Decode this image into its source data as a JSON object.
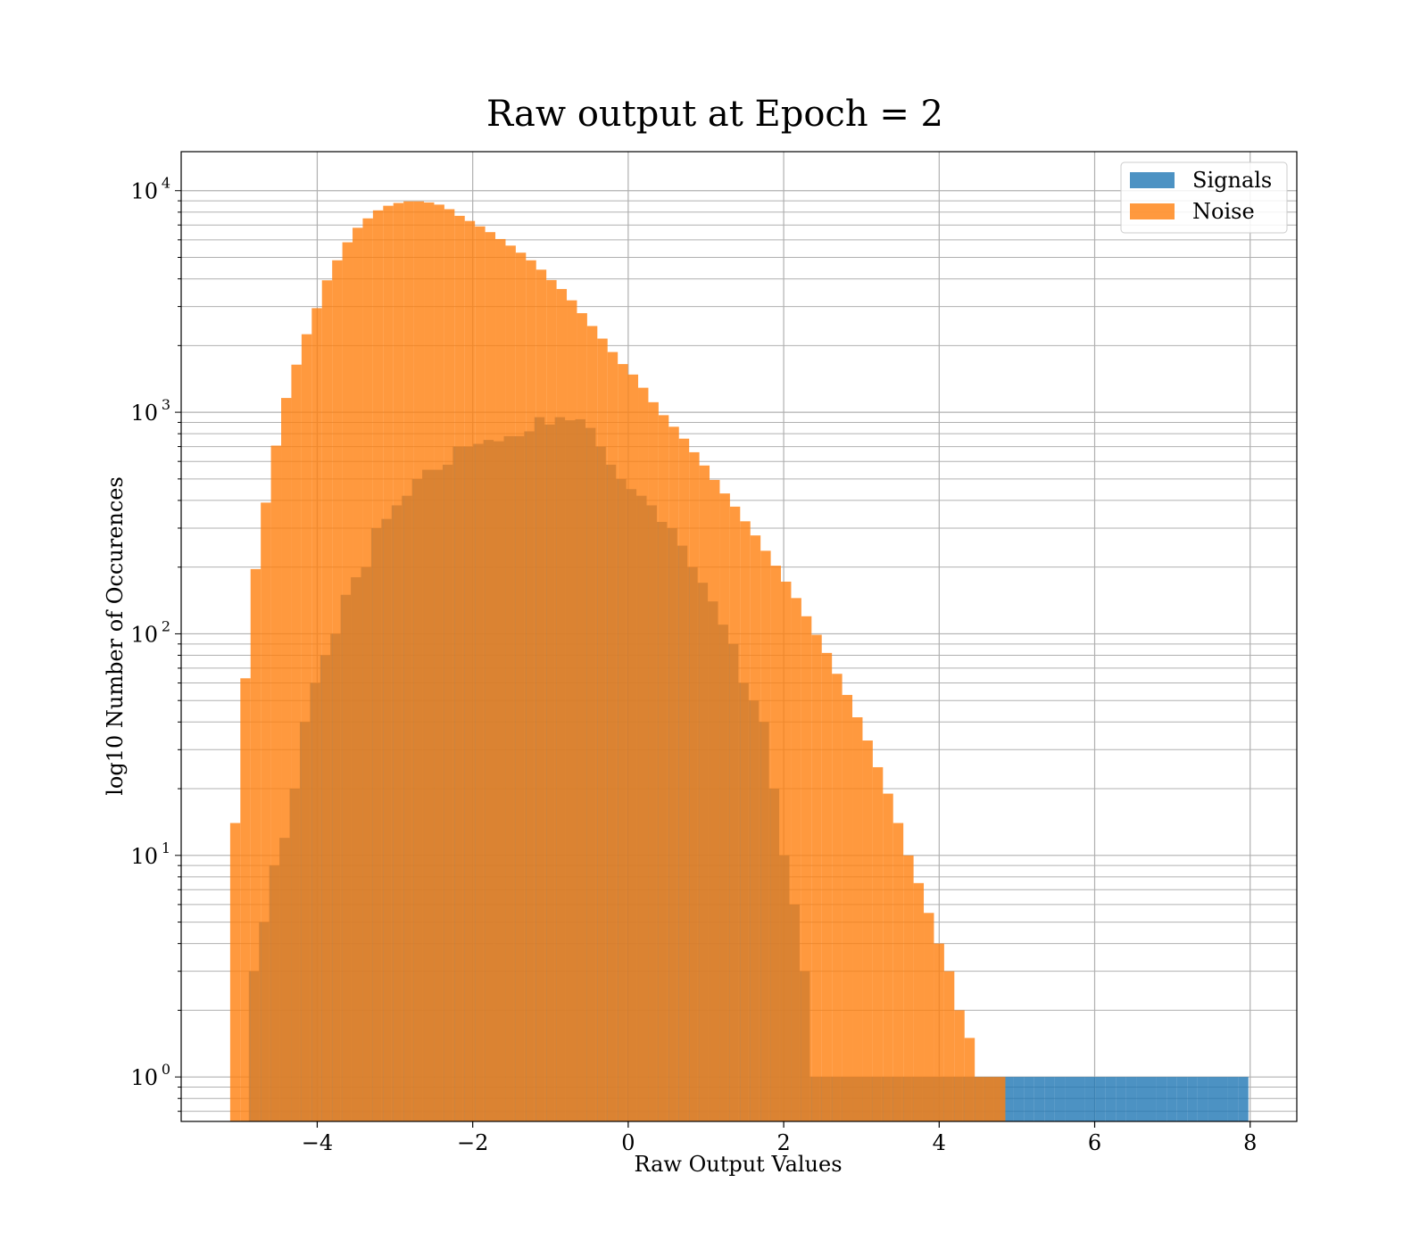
{
  "chart_data": {
    "type": "bar",
    "title": "Raw output at Epoch = 2",
    "xlabel": "Raw Output Values",
    "ylabel": "log10 Number of Occurences",
    "yscale": "log",
    "xlim": [
      -5.75,
      8.6
    ],
    "ylim": [
      0.63,
      15000
    ],
    "xticks": [
      -4,
      -2,
      0,
      2,
      4,
      6,
      8
    ],
    "xtick_labels": [
      "−4",
      "−2",
      "0",
      "2",
      "4",
      "6",
      "8"
    ],
    "yticks": [
      1,
      10,
      100,
      1000,
      10000
    ],
    "ytick_labels": [
      {
        "base": "10",
        "exp": "0"
      },
      {
        "base": "10",
        "exp": "1"
      },
      {
        "base": "10",
        "exp": "2"
      },
      {
        "base": "10",
        "exp": "3"
      },
      {
        "base": "10",
        "exp": "4"
      }
    ],
    "grid": true,
    "legend_position": "upper right",
    "series": [
      {
        "name": "Signals",
        "color": "#1f77b4",
        "bin_start": -4.88,
        "bin_width": 0.1312,
        "values": [
          3,
          5,
          9,
          12,
          20,
          40,
          60,
          80,
          100,
          150,
          180,
          200,
          300,
          330,
          380,
          420,
          500,
          550,
          550,
          580,
          700,
          700,
          720,
          750,
          740,
          780,
          780,
          820,
          950,
          880,
          950,
          920,
          930,
          850,
          700,
          580,
          500,
          450,
          420,
          380,
          320,
          300,
          250,
          200,
          170,
          140,
          110,
          90,
          60,
          50,
          40,
          20,
          10,
          6,
          3,
          1,
          1,
          1,
          1,
          1,
          1,
          1,
          1,
          1,
          1,
          1,
          1,
          1,
          1,
          1,
          1,
          1,
          1,
          1,
          1,
          1,
          1,
          1,
          1,
          1,
          1,
          1,
          1,
          1,
          1,
          1,
          1,
          1,
          1,
          1,
          1,
          1,
          1,
          1,
          1,
          1,
          1,
          1
        ],
        "visible_values_note": ""
      },
      {
        "name": "Noise",
        "color": "#ff7f0e",
        "bin_start": -5.12,
        "bin_width": 0.1312,
        "values": [
          14,
          63,
          196,
          391,
          707,
          1160,
          1640,
          2250,
          2950,
          3940,
          4850,
          5850,
          6800,
          7500,
          8150,
          8550,
          8800,
          8950,
          8950,
          8850,
          8650,
          8250,
          7700,
          7300,
          6900,
          6500,
          6050,
          5650,
          5250,
          4850,
          4400,
          3950,
          3600,
          3200,
          2800,
          2450,
          2150,
          1870,
          1650,
          1480,
          1290,
          1110,
          970,
          860,
          760,
          660,
          575,
          495,
          430,
          375,
          322,
          278,
          237,
          203,
          172,
          145,
          120,
          99,
          82,
          66,
          53,
          42,
          33,
          25,
          19,
          14,
          10,
          7.5,
          5.5,
          4,
          3,
          2,
          1.5,
          1,
          1,
          1
        ]
      }
    ]
  }
}
